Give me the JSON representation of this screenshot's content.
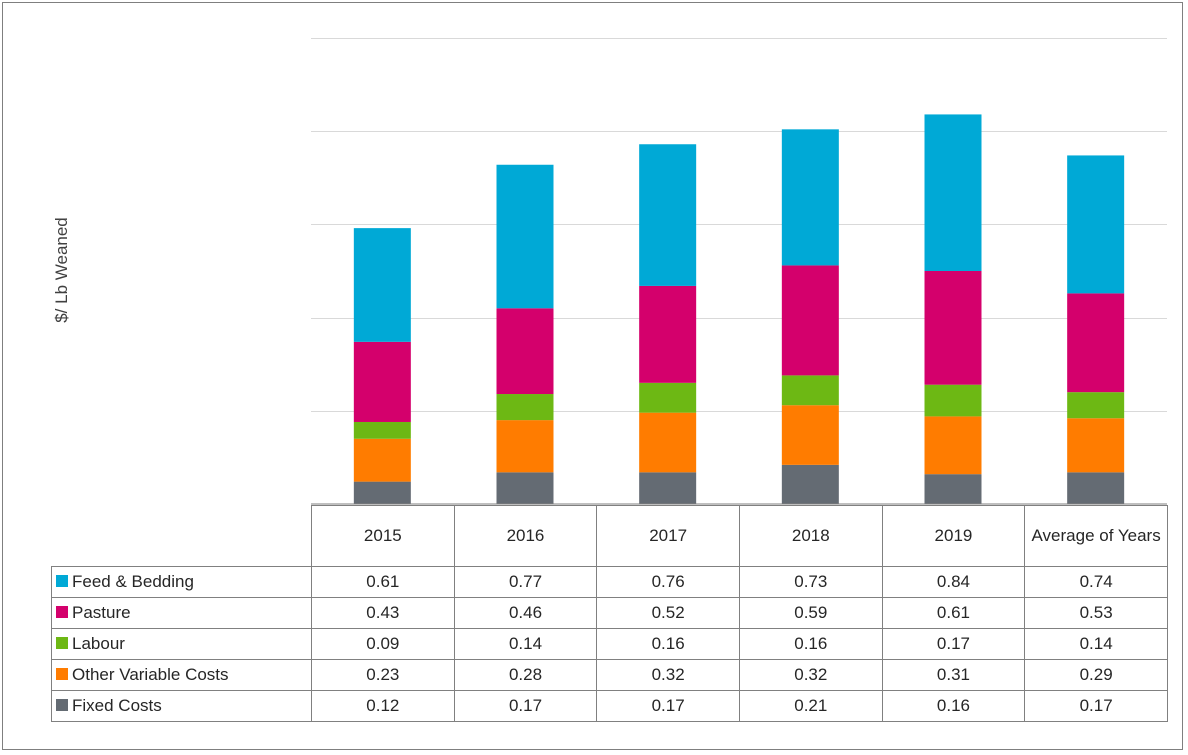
{
  "chart_data": {
    "type": "bar",
    "stacked": true,
    "ylabel": "$/ Lb Weaned",
    "ylim": [
      0,
      2.5
    ],
    "grid": true,
    "categories": [
      "2015",
      "2016",
      "2017",
      "2018",
      "2019",
      "Average of Years"
    ],
    "series": [
      {
        "name": "Fixed Costs",
        "color": "#646b73",
        "values": [
          "0.12",
          "0.17",
          "0.17",
          "0.21",
          "0.16",
          "0.17"
        ]
      },
      {
        "name": "Other Variable Costs",
        "color": "#ff7c00",
        "values": [
          "0.23",
          "0.28",
          "0.32",
          "0.32",
          "0.31",
          "0.29"
        ]
      },
      {
        "name": "Labour",
        "color": "#6db814",
        "values": [
          "0.09",
          "0.14",
          "0.16",
          "0.16",
          "0.17",
          "0.14"
        ]
      },
      {
        "name": "Pasture",
        "color": "#d4006c",
        "values": [
          "0.43",
          "0.46",
          "0.52",
          "0.59",
          "0.61",
          "0.53"
        ]
      },
      {
        "name": "Feed & Bedding",
        "color": "#00a9d6",
        "values": [
          "0.61",
          "0.77",
          "0.76",
          "0.73",
          "0.84",
          "0.74"
        ]
      }
    ],
    "table_row_order": [
      "Feed & Bedding",
      "Pasture",
      "Labour",
      "Other Variable Costs",
      "Fixed Costs"
    ]
  }
}
